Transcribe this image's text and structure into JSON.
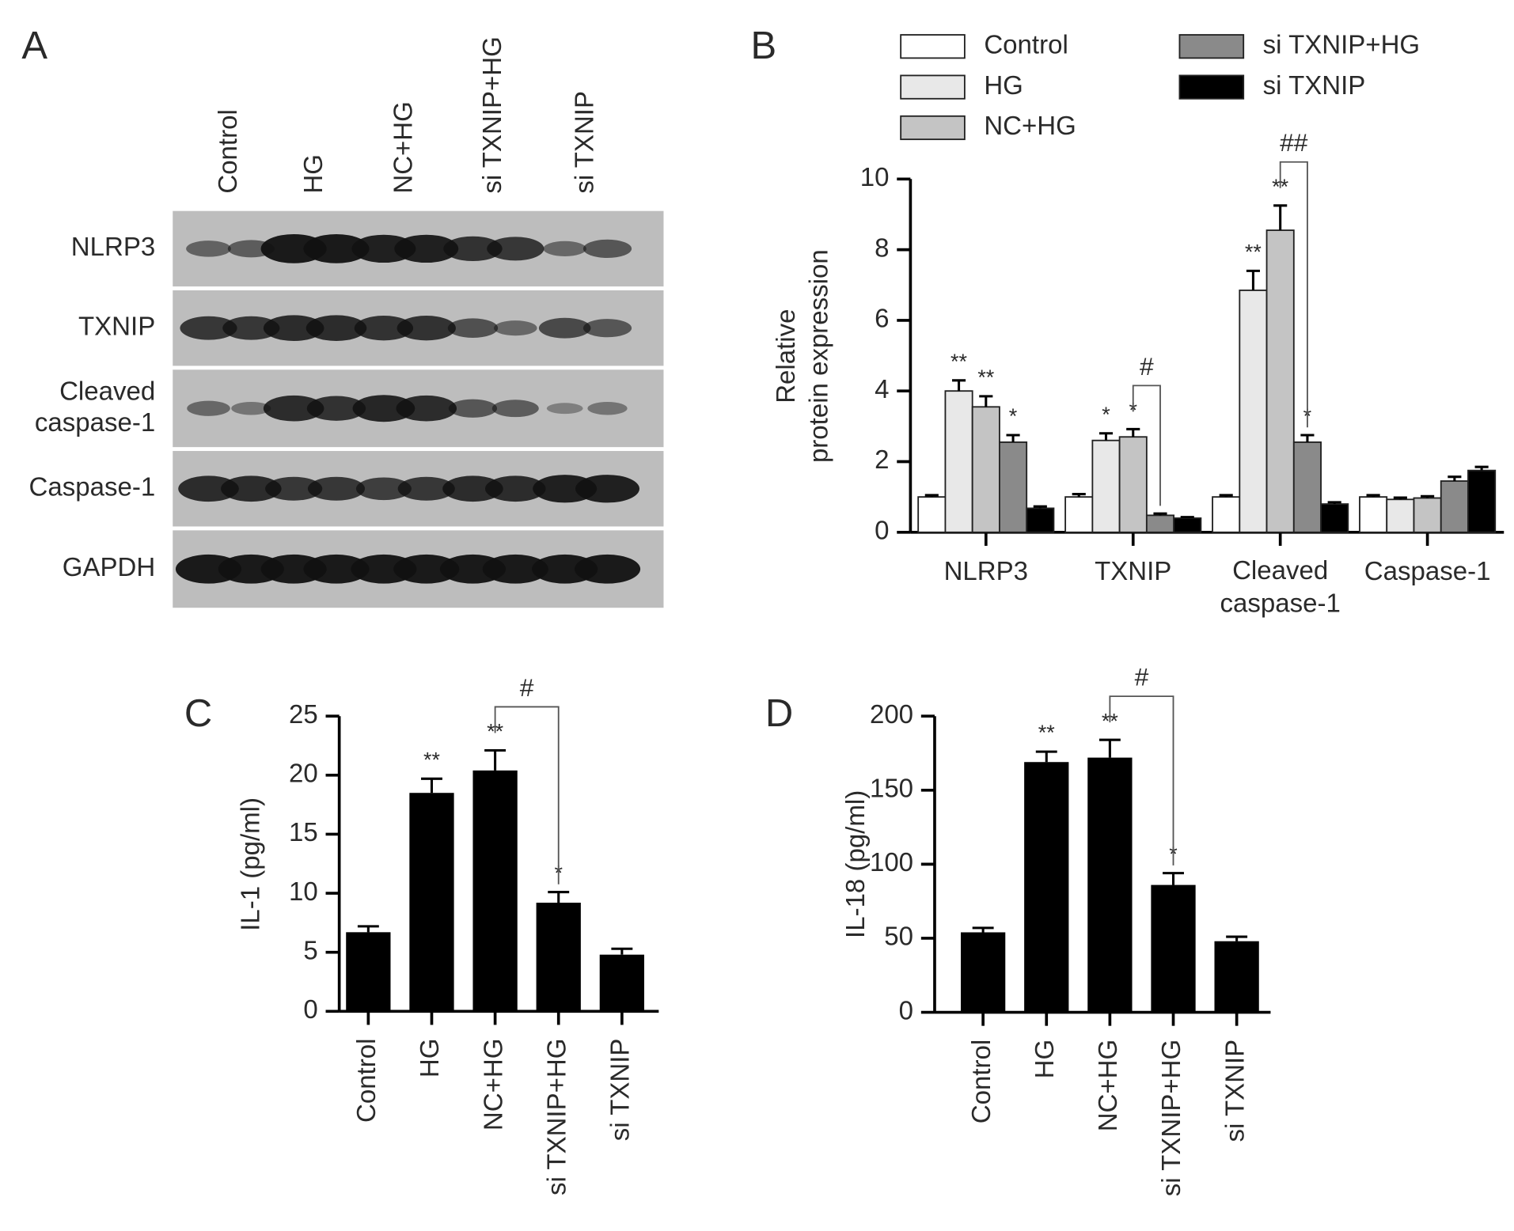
{
  "blot": {
    "label": "A",
    "lanes": [
      "Control",
      "HG",
      "NC+HG",
      "si TXNIP+HG",
      "si TXNIP"
    ],
    "rows": [
      "NLRP3",
      "TXNIP",
      "Cleaved caspase-1",
      "Caspase-1",
      "GAPDH"
    ]
  },
  "chart_data": [
    {
      "type": "grouped_bar",
      "panel": "B",
      "y_label": "Relative protein expression",
      "categories": [
        "NLRP3",
        "TXNIP",
        "Cleaved caspase-1",
        "Caspase-1"
      ],
      "ylim": [
        0,
        10
      ],
      "yticks": [
        0,
        2,
        4,
        6,
        8,
        10
      ],
      "series": [
        {
          "name": "Control",
          "color": "#ffffff",
          "values": [
            1.0,
            1.0,
            1.0,
            1.0
          ],
          "errors": [
            0.05,
            0.08,
            0.05,
            0.05
          ],
          "significance": [
            null,
            null,
            null,
            null
          ]
        },
        {
          "name": "HG",
          "color": "#e8e8e8",
          "values": [
            4.0,
            2.6,
            6.85,
            0.93
          ],
          "errors": [
            0.3,
            0.2,
            0.55,
            0.05
          ],
          "significance": [
            "**",
            "*",
            "**",
            null
          ]
        },
        {
          "name": "NC+HG",
          "color": "#c4c4c4",
          "values": [
            3.55,
            2.7,
            8.55,
            0.97
          ],
          "errors": [
            0.3,
            0.22,
            0.7,
            0.05
          ],
          "significance": [
            "**",
            "*",
            "**",
            null
          ]
        },
        {
          "name": "si TXNIP+HG",
          "color": "#8a8a8a",
          "values": [
            2.55,
            0.48,
            2.55,
            1.45
          ],
          "errors": [
            0.2,
            0.05,
            0.2,
            0.12
          ],
          "significance": [
            "*",
            null,
            "*",
            null
          ]
        },
        {
          "name": "si TXNIP",
          "color": "#000000",
          "values": [
            0.68,
            0.4,
            0.8,
            1.75
          ],
          "errors": [
            0.05,
            0.03,
            0.05,
            0.1
          ],
          "significance": [
            null,
            null,
            null,
            null
          ]
        }
      ],
      "comparisons": [
        {
          "category": "TXNIP",
          "from": "NC+HG",
          "to": "si TXNIP+HG",
          "label": "#"
        },
        {
          "category": "Cleaved caspase-1",
          "from": "NC+HG",
          "to": "si TXNIP+HG",
          "label": "##"
        }
      ]
    },
    {
      "type": "bar",
      "panel": "C",
      "y_label": "IL-1 (pg/ml)",
      "categories": [
        "Control",
        "HG",
        "NC+HG",
        "si TXNIP+HG",
        "si TXNIP"
      ],
      "values": [
        6.7,
        18.5,
        20.4,
        9.2,
        4.8
      ],
      "errors": [
        0.5,
        1.2,
        1.7,
        0.9,
        0.5
      ],
      "significance": [
        null,
        "**",
        "**",
        "*",
        null
      ],
      "color": "#000000",
      "ylim": [
        0,
        25
      ],
      "yticks": [
        0,
        5,
        10,
        15,
        20,
        25
      ],
      "comparisons": [
        {
          "from": "NC+HG",
          "to": "si TXNIP+HG",
          "label": "#"
        }
      ]
    },
    {
      "type": "bar",
      "panel": "D",
      "y_label": "IL-18 (pg/ml)",
      "categories": [
        "Control",
        "HG",
        "NC+HG",
        "si TXNIP+HG",
        "si TXNIP"
      ],
      "values": [
        54,
        169,
        172,
        86,
        48
      ],
      "errors": [
        3,
        7,
        12,
        8,
        3
      ],
      "significance": [
        null,
        "**",
        "**",
        "*",
        null
      ],
      "color": "#000000",
      "ylim": [
        0,
        200
      ],
      "yticks": [
        0,
        50,
        100,
        150,
        200
      ],
      "comparisons": [
        {
          "from": "NC+HG",
          "to": "si TXNIP+HG",
          "label": "#"
        }
      ]
    }
  ]
}
